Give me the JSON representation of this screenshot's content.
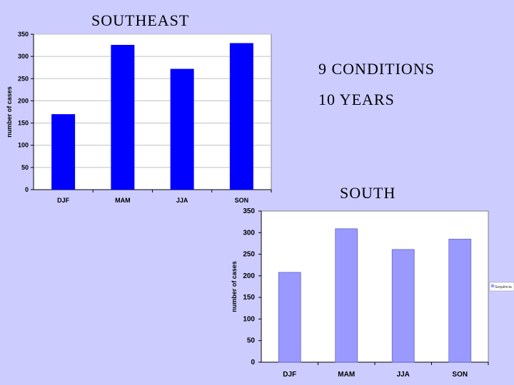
{
  "slide": {
    "title_southeast": "SOUTHEAST",
    "conditions": "9  CONDITIONS",
    "years": "10 YEARS",
    "title_south": "SOUTH"
  },
  "colors": {
    "background": "#ccccff",
    "southeast_bar": "#0000ff",
    "south_bar": "#9999ff",
    "plot_bg": "#ffffff",
    "grid": "#c0c0c0"
  },
  "chart_data": [
    {
      "type": "bar",
      "title": "SOUTHEAST",
      "categories": [
        "DJF",
        "MAM",
        "JJA",
        "SON"
      ],
      "values": [
        170,
        326,
        272,
        330
      ],
      "xlabel": "",
      "ylabel": "number of cases",
      "ylim": [
        0,
        350
      ],
      "yticks": [
        0,
        50,
        100,
        150,
        200,
        250,
        300,
        350
      ],
      "grid": true,
      "legend": "none"
    },
    {
      "type": "bar",
      "title": "SOUTH",
      "categories": [
        "DJF",
        "MAM",
        "JJA",
        "SON"
      ],
      "values": [
        208,
        309,
        261,
        285
      ],
      "xlabel": "",
      "ylabel": "number of cases",
      "ylim": [
        0,
        350
      ],
      "yticks": [
        0,
        50,
        100,
        150,
        200,
        250,
        300,
        350
      ],
      "grid": false,
      "legend": "right",
      "legend_text": "Sequência"
    }
  ]
}
